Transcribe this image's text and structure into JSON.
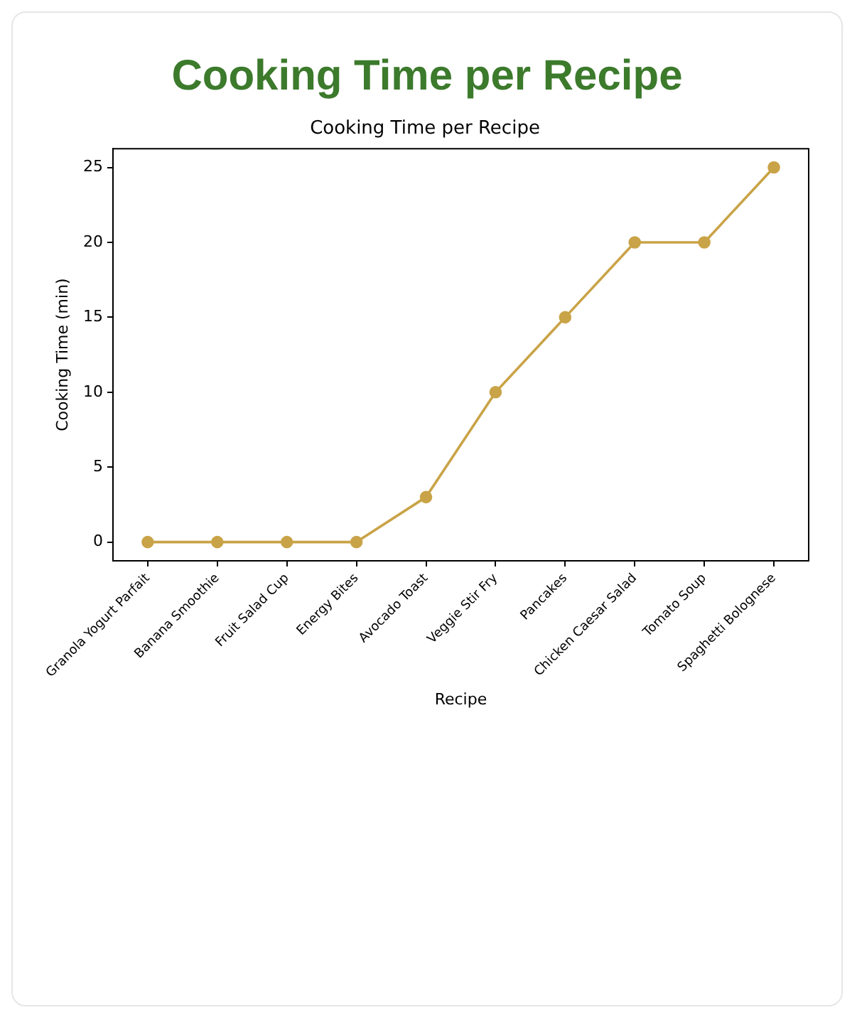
{
  "chart_data": {
    "type": "line",
    "title": "Cooking Time per Recipe",
    "subtitle": "Cooking Time per Recipe",
    "xlabel": "Recipe",
    "ylabel": "Cooking Time (min)",
    "categories": [
      "Granola Yogurt Parfait",
      "Banana Smoothie",
      "Fruit Salad Cup",
      "Energy Bites",
      "Avocado Toast",
      "Veggie Stir Fry",
      "Pancakes",
      "Chicken Caesar Salad",
      "Tomato Soup",
      "Spaghetti Bolognese"
    ],
    "series": [
      {
        "color": "#c9a347",
        "values": [
          0,
          0,
          0,
          0,
          3,
          10,
          15,
          20,
          20,
          25
        ]
      }
    ],
    "ylim": [
      -1.25,
      26.25
    ],
    "yticks": [
      0,
      5,
      10,
      15,
      20,
      25
    ],
    "grid": false,
    "legend": false,
    "marker": "circle",
    "line_style": "solid"
  }
}
